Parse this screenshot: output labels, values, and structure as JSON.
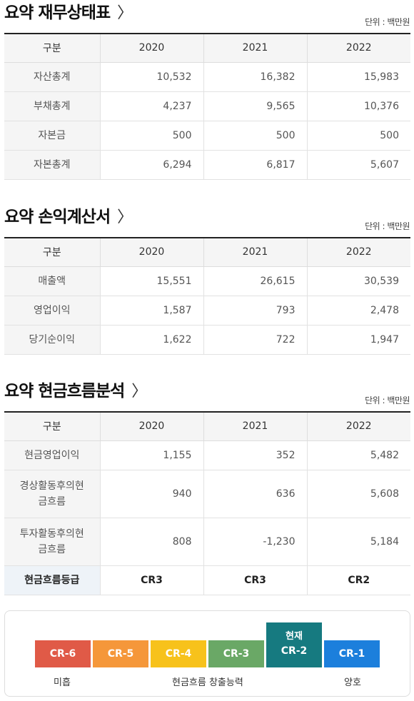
{
  "unit_label": "단위 : 백만원",
  "years": [
    "2020",
    "2021",
    "2022"
  ],
  "header_label": "구분",
  "sections": [
    {
      "title": "요약 재무상태표",
      "rows": [
        {
          "label": "자산총계",
          "values": [
            "10,532",
            "16,382",
            "15,983"
          ]
        },
        {
          "label": "부채총계",
          "values": [
            "4,237",
            "9,565",
            "10,376"
          ]
        },
        {
          "label": "자본금",
          "values": [
            "500",
            "500",
            "500"
          ]
        },
        {
          "label": "자본총계",
          "values": [
            "6,294",
            "6,817",
            "5,607"
          ]
        }
      ]
    },
    {
      "title": "요약 손익계산서",
      "rows": [
        {
          "label": "매출액",
          "values": [
            "15,551",
            "26,615",
            "30,539"
          ]
        },
        {
          "label": "영업이익",
          "values": [
            "1,587",
            "793",
            "2,478"
          ]
        },
        {
          "label": "당기순이익",
          "values": [
            "1,622",
            "722",
            "1,947"
          ]
        }
      ]
    },
    {
      "title": "요약 현금흐름분석",
      "rows": [
        {
          "label": "현금영업이익",
          "values": [
            "1,155",
            "352",
            "5,482"
          ]
        },
        {
          "label_line1": "경상활동후의현",
          "label_line2": "금흐름",
          "values": [
            "940",
            "636",
            "5,608"
          ]
        },
        {
          "label_line1": "투자활동후의현",
          "label_line2": "금흐름",
          "values": [
            "808",
            "-1,230",
            "5,184"
          ]
        }
      ],
      "grade_row": {
        "label": "현금흐름등급",
        "values": [
          "CR3",
          "CR3",
          "CR2"
        ]
      }
    }
  ],
  "grade_scale": {
    "current_label": "현재",
    "levels": [
      {
        "label": "CR-6",
        "color": "#e05a47"
      },
      {
        "label": "CR-5",
        "color": "#f5973a"
      },
      {
        "label": "CR-4",
        "color": "#f7c21b"
      },
      {
        "label": "CR-3",
        "color": "#6aa866"
      },
      {
        "label": "CR-2",
        "color": "#167a80"
      },
      {
        "label": "CR-1",
        "color": "#1c7fdc"
      }
    ],
    "current_index": 4,
    "caption_low": "미흡",
    "caption_mid": "현금흐름 창출능력",
    "caption_high": "양호"
  }
}
